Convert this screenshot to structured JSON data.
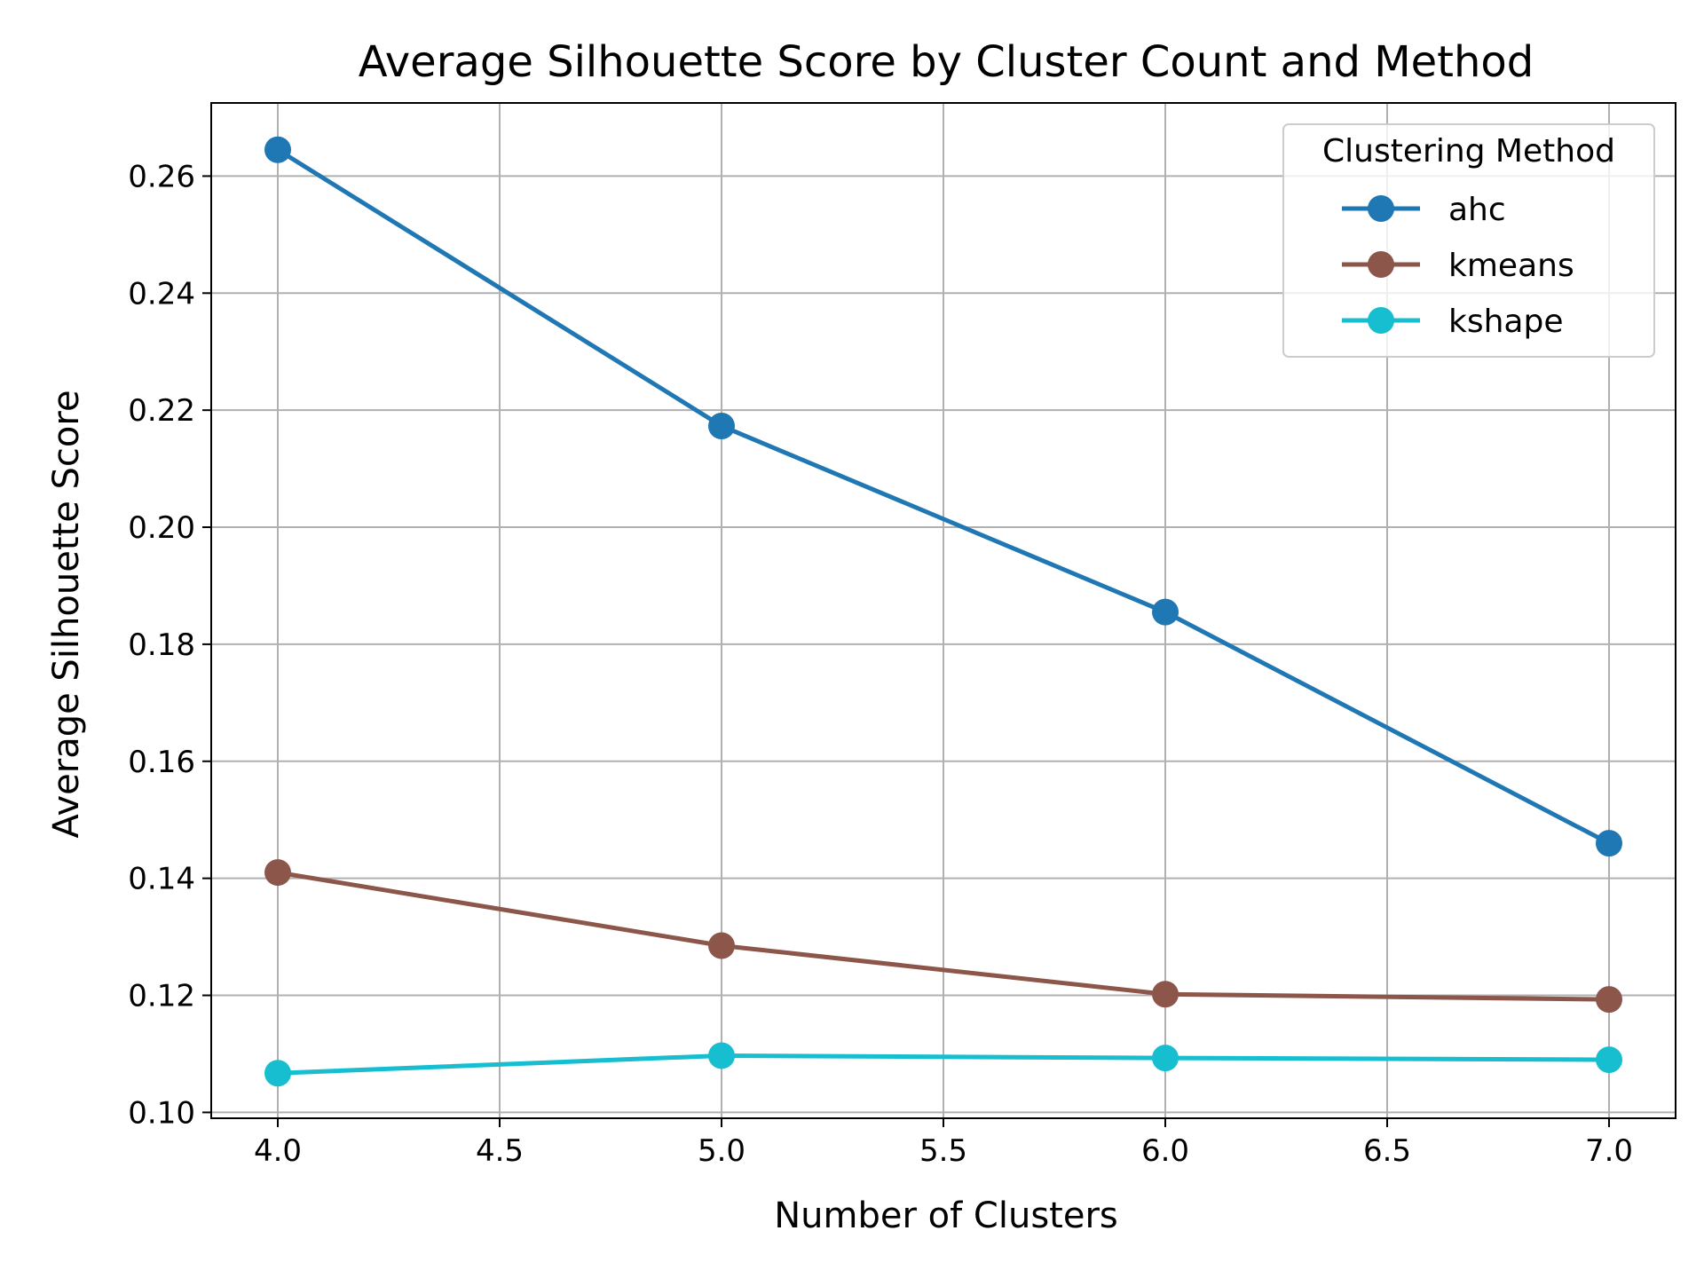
{
  "chart_data": {
    "type": "line",
    "title": "Average Silhouette Score by Cluster Count and Method",
    "xlabel": "Number of Clusters",
    "ylabel": "Average Silhouette Score",
    "xlim": [
      3.85,
      7.15
    ],
    "ylim": [
      0.099,
      0.2725
    ],
    "xticks": [
      "4.0",
      "4.5",
      "5.0",
      "5.5",
      "6.0",
      "6.5",
      "7.0"
    ],
    "yticks": [
      "0.10",
      "0.12",
      "0.14",
      "0.16",
      "0.18",
      "0.20",
      "0.22",
      "0.24",
      "0.26"
    ],
    "grid": true,
    "legend": {
      "title": "Clustering Method",
      "placement": "top-right"
    },
    "x": [
      4,
      5,
      6,
      7
    ],
    "series": [
      {
        "name": "ahc",
        "values": [
          0.2645,
          0.2173,
          0.1855,
          0.146
        ],
        "color": "#1f77b4"
      },
      {
        "name": "kmeans",
        "values": [
          0.141,
          0.1285,
          0.1202,
          0.1193
        ],
        "color": "#8c564b"
      },
      {
        "name": "kshape",
        "values": [
          0.1067,
          0.1097,
          0.1093,
          0.109
        ],
        "color": "#17becf"
      }
    ]
  }
}
